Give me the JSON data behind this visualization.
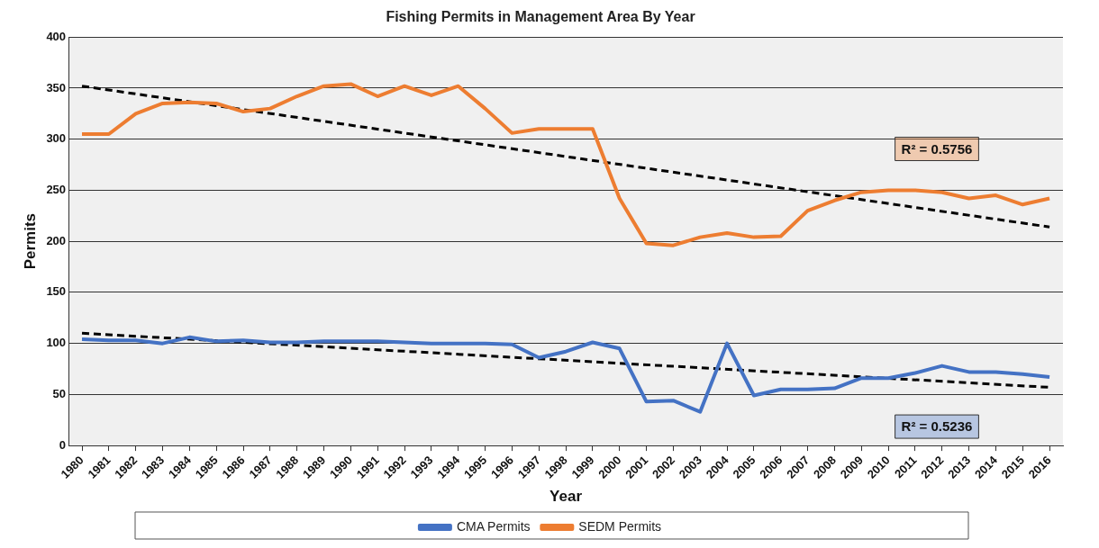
{
  "chart_data": {
    "type": "line",
    "title": "Fishing Permits in Management Area By Year",
    "xlabel": "Year",
    "ylabel": "Permits",
    "x": [
      1980,
      1981,
      1982,
      1983,
      1984,
      1985,
      1986,
      1987,
      1988,
      1989,
      1990,
      1991,
      1992,
      1993,
      1994,
      1995,
      1996,
      1997,
      1998,
      1999,
      2000,
      2001,
      2002,
      2003,
      2004,
      2005,
      2006,
      2007,
      2008,
      2009,
      2010,
      2011,
      2012,
      2013,
      2014,
      2015,
      2016
    ],
    "xlim": [
      1979.5,
      2016.5
    ],
    "xticks": [
      1980,
      1981,
      1982,
      1983,
      1984,
      1985,
      1986,
      1987,
      1988,
      1989,
      1990,
      1991,
      1992,
      1993,
      1994,
      1995,
      1996,
      1997,
      1998,
      1999,
      2000,
      2001,
      2002,
      2003,
      2004,
      2005,
      2006,
      2007,
      2008,
      2009,
      2010,
      2011,
      2012,
      2013,
      2014,
      2015,
      2016
    ],
    "ylim": [
      0,
      400
    ],
    "yticks": [
      0,
      50,
      100,
      150,
      200,
      250,
      300,
      350,
      400
    ],
    "series": [
      {
        "name": "CMA Permits",
        "color": "#4472c4",
        "values": [
          104,
          103,
          103,
          100,
          106,
          102,
          103,
          101,
          101,
          102,
          102,
          102,
          101,
          100,
          100,
          100,
          99,
          86,
          92,
          101,
          95,
          43,
          44,
          33,
          100,
          49,
          55,
          55,
          56,
          66,
          66,
          71,
          78,
          72,
          72,
          70,
          67
        ]
      },
      {
        "name": "SEDM Permits",
        "color": "#ed7d31",
        "values": [
          305,
          305,
          325,
          335,
          336,
          335,
          327,
          330,
          342,
          352,
          354,
          342,
          352,
          343,
          352,
          330,
          306,
          310,
          310,
          310,
          242,
          198,
          196,
          204,
          208,
          204,
          205,
          230,
          240,
          248,
          250,
          250,
          248,
          242,
          245,
          236,
          242
        ]
      },
      {
        "type": "line",
        "color": "#000000",
        "line_style": "dashed",
        "values": [
          110,
          null,
          null,
          null,
          null,
          null,
          null,
          null,
          null,
          null,
          null,
          null,
          null,
          null,
          null,
          null,
          null,
          null,
          null,
          null,
          null,
          null,
          null,
          null,
          null,
          null,
          null,
          null,
          null,
          null,
          null,
          null,
          null,
          null,
          null,
          null,
          57
        ]
      },
      {
        "type": "line",
        "color": "#000000",
        "line_style": "dashed",
        "values": [
          352,
          null,
          null,
          null,
          null,
          null,
          null,
          null,
          null,
          null,
          null,
          null,
          null,
          null,
          null,
          null,
          null,
          null,
          null,
          null,
          null,
          null,
          null,
          null,
          null,
          null,
          null,
          null,
          null,
          null,
          null,
          null,
          null,
          null,
          null,
          null,
          214
        ]
      }
    ],
    "annotations": [
      "R² = 0.5236",
      "R² = 0.5756"
    ],
    "grid": "y",
    "legend": "bottom",
    "marker": "none",
    "line_style": "solid"
  }
}
